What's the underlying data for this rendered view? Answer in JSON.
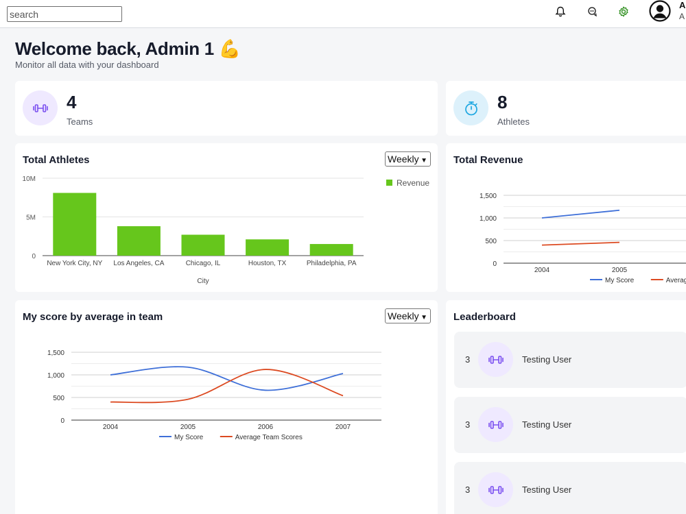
{
  "header": {
    "search_placeholder": "search",
    "user_name": "A",
    "user_role": "A"
  },
  "welcome": {
    "title": "Welcome back, Admin 1 💪",
    "subtitle": "Monitor all data with your dashboard"
  },
  "stats": [
    {
      "value": "4",
      "label": "Teams",
      "icon": "dumbbell-icon"
    },
    {
      "value": "8",
      "label": "Athletes",
      "icon": "stopwatch-icon"
    }
  ],
  "total_athletes": {
    "title": "Total Athletes",
    "period": "Weekly"
  },
  "total_revenue": {
    "title": "Total Revenue"
  },
  "score_card": {
    "title": "My score by average in team",
    "period": "Weekly"
  },
  "leaderboard": {
    "title": "Leaderboard",
    "rows": [
      {
        "rank": "3",
        "name": "Testing User"
      },
      {
        "rank": "3",
        "name": "Testing User"
      },
      {
        "rank": "3",
        "name": "Testing User"
      }
    ]
  },
  "colors": {
    "accent_green": "#66c61c",
    "my_score": "#3e6fd8",
    "avg_team": "#dc4a21",
    "icon_purple": "#7a4ff0",
    "icon_blue": "#1ea7e1"
  },
  "chart_data": [
    {
      "type": "bar",
      "categories": [
        "New York City, NY",
        "Los Angeles, CA",
        "Chicago, IL",
        "Houston, TX",
        "Philadelphia, PA"
      ],
      "series": [
        {
          "name": "Revenue",
          "values": [
            8100000,
            3800000,
            2700000,
            2100000,
            1500000
          ]
        }
      ],
      "yticks": [
        "0",
        "5M",
        "10M"
      ],
      "ylim": [
        0,
        10000000
      ],
      "xlabel": "City",
      "legend": "right"
    },
    {
      "type": "line",
      "categories": [
        "2004",
        "2005"
      ],
      "series": [
        {
          "name": "My Score",
          "values": [
            1000,
            1170
          ]
        },
        {
          "name": "Average Team Scores",
          "values": [
            400,
            460
          ]
        }
      ],
      "yticks": [
        "0",
        "500",
        "1,000",
        "1,500"
      ],
      "ylim": [
        0,
        1500
      ],
      "legend": "bottom"
    },
    {
      "type": "line",
      "categories": [
        "2004",
        "2005",
        "2006",
        "2007"
      ],
      "series": [
        {
          "name": "My Score",
          "values": [
            1000,
            1170,
            660,
            1030
          ]
        },
        {
          "name": "Average Team Scores",
          "values": [
            400,
            460,
            1120,
            540
          ]
        }
      ],
      "yticks": [
        "0",
        "500",
        "1,000",
        "1,500"
      ],
      "ylim": [
        0,
        1500
      ],
      "legend": "bottom"
    }
  ]
}
